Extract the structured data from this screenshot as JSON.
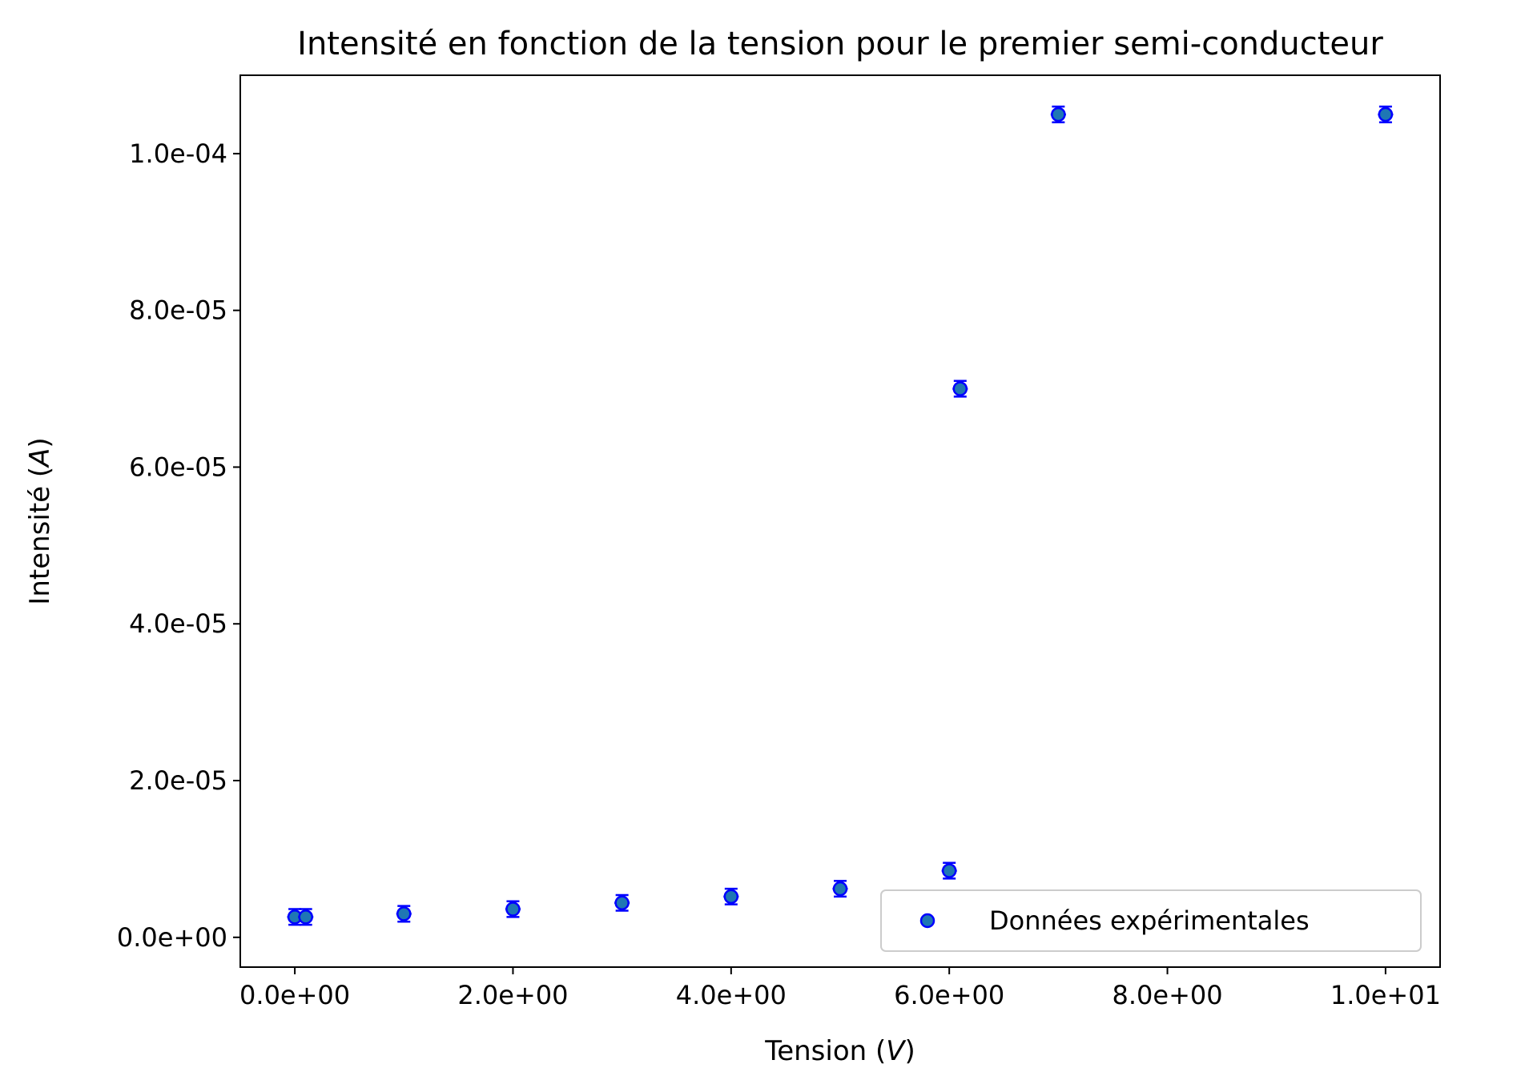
{
  "chart_data": {
    "type": "scatter",
    "title": "Intensité en fonction de la tension pour le premier semi-conducteur",
    "xlabel_text": "Tension (",
    "xlabel_unit": "V",
    "xlabel_close": ")",
    "ylabel_text": "Intensité (",
    "ylabel_unit": "A",
    "ylabel_close": ")",
    "xlim": [
      -0.5,
      10.5
    ],
    "ylim": [
      -3.8e-06,
      0.00011
    ],
    "x_ticks": [
      0,
      2,
      4,
      6,
      8,
      10
    ],
    "x_tick_labels": [
      "0.0e+00",
      "2.0e+00",
      "4.0e+00",
      "6.0e+00",
      "8.0e+00",
      "1.0e+01"
    ],
    "y_ticks": [
      0,
      2e-05,
      4e-05,
      6e-05,
      8e-05,
      0.0001
    ],
    "y_tick_labels": [
      "0.0e+00",
      "2.0e-05",
      "4.0e-05",
      "6.0e-05",
      "8.0e-05",
      "1.0e-04"
    ],
    "grid": false,
    "legend_position": "lower-right",
    "series": [
      {
        "name": "Données expérimentales",
        "color_fill": "#1f77b4",
        "color_edge": "#0000ff",
        "points": [
          {
            "x": 0.0,
            "y": 2.6e-06,
            "xerr": 0.07,
            "yerr": 1e-06
          },
          {
            "x": 0.1,
            "y": 2.6e-06,
            "xerr": 0.07,
            "yerr": 1e-06
          },
          {
            "x": 1.0,
            "y": 3e-06,
            "xerr": 0.07,
            "yerr": 1e-06
          },
          {
            "x": 2.0,
            "y": 3.6e-06,
            "xerr": 0.07,
            "yerr": 1e-06
          },
          {
            "x": 3.0,
            "y": 4.4e-06,
            "xerr": 0.07,
            "yerr": 1e-06
          },
          {
            "x": 4.0,
            "y": 5.2e-06,
            "xerr": 0.07,
            "yerr": 1e-06
          },
          {
            "x": 5.0,
            "y": 6.2e-06,
            "xerr": 0.07,
            "yerr": 1e-06
          },
          {
            "x": 6.0,
            "y": 8.5e-06,
            "xerr": 0.07,
            "yerr": 1e-06
          },
          {
            "x": 6.1,
            "y": 7e-05,
            "xerr": 0.07,
            "yerr": 1e-06
          },
          {
            "x": 7.0,
            "y": 0.000105,
            "xerr": 0.07,
            "yerr": 1e-06
          },
          {
            "x": 10.0,
            "y": 0.000105,
            "xerr": 0.07,
            "yerr": 1e-06
          }
        ]
      }
    ]
  }
}
